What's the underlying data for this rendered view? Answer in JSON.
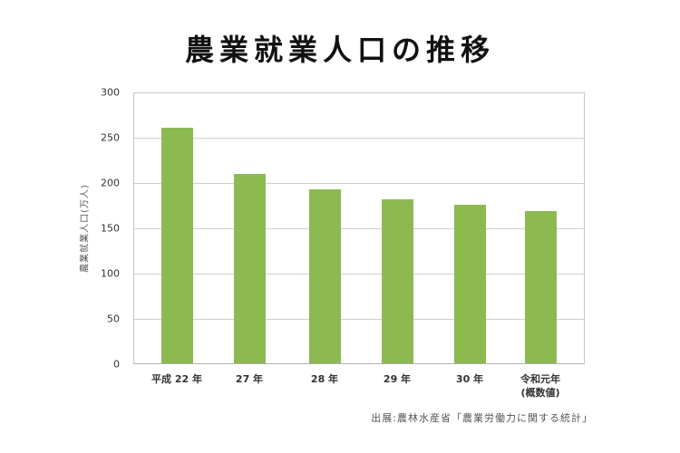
{
  "chart_data": {
    "type": "bar",
    "title": "農業就業人口の推移",
    "categories": [
      "平成 22 年",
      "27 年",
      "28 年",
      "29 年",
      "30 年",
      "令和元年\n(概数値)"
    ],
    "values": [
      260.6,
      209.7,
      192.2,
      181.6,
      175.3,
      168.1
    ],
    "xlabel": "",
    "ylabel": "農業就業人口(万人)",
    "ylim": [
      0,
      300
    ],
    "yticks": [
      0,
      50,
      100,
      150,
      200,
      250,
      300
    ],
    "grid": true,
    "legend": null,
    "bar_color": "#8cba51",
    "source": "出展:農林水産省「農業労働力に関する統計」"
  },
  "title": "農業就業人口の推移",
  "ylabel": "農業就業人口(万人)",
  "yticks": [
    "300",
    "250",
    "200",
    "150",
    "100",
    "50",
    "0"
  ],
  "xlabels": [
    {
      "line1": "平成 22 年",
      "line2": ""
    },
    {
      "line1": "27 年",
      "line2": ""
    },
    {
      "line1": "28 年",
      "line2": ""
    },
    {
      "line1": "29 年",
      "line2": ""
    },
    {
      "line1": "30 年",
      "line2": ""
    },
    {
      "line1": "令和元年",
      "line2": "(概数値)"
    }
  ],
  "source": "出展:農林水産省「農業労働力に関する統計」"
}
